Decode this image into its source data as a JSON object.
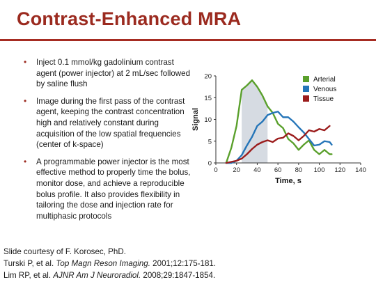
{
  "slide": {
    "title": "Contrast-Enhanced MRA",
    "bullets": [
      "Inject 0.1 mmol/kg gadolinium contrast agent (power injector) at 2 mL/sec followed by saline flush",
      "Image during the first pass of the contrast agent, keeping the contrast concentration high and relatively constant during acquisition of the low spatial frequencies (center of k-space)",
      "A programmable power injector is the most effective method to properly time the bolus, monitor dose, and achieve a reproducible bolus profile. It also provides flexibility in tailoring the dose and injection rate for multiphasic protocols"
    ],
    "credits": {
      "line1": "Slide courtesy of F. Korosec, PhD.",
      "ref1_authors": "Turski P, et al. ",
      "ref1_journal": "Top Magn Reson Imaging.",
      "ref1_rest": " 2001;12:175-181.",
      "ref2_authors": "Lim RP, et al. ",
      "ref2_journal": "AJNR Am J Neuroradiol.",
      "ref2_rest": " 2008;29:1847-1854."
    }
  },
  "chart_data": {
    "type": "line",
    "title": "",
    "xlabel": "Time, s",
    "ylabel": "Signal",
    "xlim": [
      0,
      140
    ],
    "ylim": [
      0,
      20
    ],
    "xticks": [
      0,
      20,
      40,
      60,
      80,
      100,
      120,
      140
    ],
    "yticks": [
      0,
      5,
      10,
      15,
      20
    ],
    "legend_position": "top-right",
    "shaded_window": {
      "x_start": 25,
      "x_end": 50,
      "color": "#d6dbe2"
    },
    "series": [
      {
        "name": "Arterial",
        "color": "#5aa02c",
        "x": [
          10,
          15,
          20,
          25,
          30,
          35,
          40,
          45,
          50,
          55,
          60,
          65,
          70,
          75,
          80,
          85,
          90,
          95,
          100,
          105,
          110,
          112
        ],
        "y": [
          0,
          3.5,
          8.5,
          16.8,
          17.8,
          19,
          17.5,
          15.5,
          13,
          11.5,
          9,
          8,
          5.5,
          4.5,
          3,
          4.2,
          5.2,
          3,
          2,
          3,
          2,
          2
        ]
      },
      {
        "name": "Venous",
        "color": "#2575b8",
        "x": [
          10,
          15,
          20,
          25,
          30,
          35,
          40,
          45,
          50,
          55,
          60,
          65,
          70,
          75,
          80,
          85,
          90,
          95,
          100,
          105,
          110,
          112
        ],
        "y": [
          0,
          0,
          0.5,
          1.8,
          4,
          6,
          8.5,
          9.5,
          11,
          11.5,
          11.8,
          10.5,
          10.5,
          9.5,
          8.2,
          7,
          5.5,
          4,
          4.2,
          5,
          4.8,
          4.2
        ]
      },
      {
        "name": "Tissue",
        "color": "#9b1c1c",
        "x": [
          10,
          20,
          25,
          30,
          35,
          40,
          45,
          50,
          55,
          60,
          65,
          70,
          75,
          80,
          85,
          90,
          95,
          100,
          105,
          110
        ],
        "y": [
          0,
          0.5,
          1,
          2,
          3.2,
          4.2,
          4.8,
          5.2,
          4.8,
          5.6,
          5.8,
          6.8,
          6.2,
          5.2,
          6.2,
          7.5,
          7.2,
          7.8,
          7.5,
          8.5
        ]
      }
    ]
  }
}
